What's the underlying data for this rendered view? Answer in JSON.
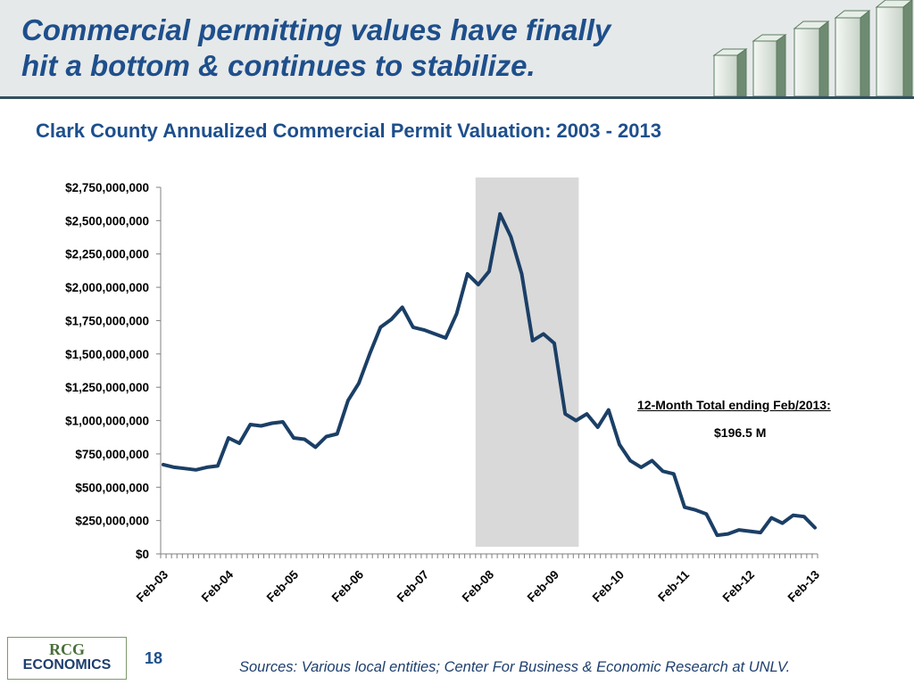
{
  "slide": {
    "title_line1": "Commercial permitting values have finally",
    "title_line2": "hit a bottom & continues to stabilize.",
    "page_number": "18",
    "source": "Sources: Various local entities; Center For Business & Economic Research at UNLV.",
    "logo_top": "RCG",
    "logo_bottom": "ECONOMICS"
  },
  "colors": {
    "title": "#1e4f8c",
    "line": "#1b3f66",
    "recession_band": "#d9d9d9",
    "header_bg": "#e6e9e9",
    "header_rule": "#33505f"
  },
  "chart_data": {
    "type": "line",
    "title": "Clark County Annualized Commercial Permit Valuation: 2003 - 2013",
    "xlabel": "",
    "ylabel": "",
    "ylim": [
      0,
      2750000000
    ],
    "grid": false,
    "y_ticks": [
      "$0",
      "$250,000,000",
      "$500,000,000",
      "$750,000,000",
      "$1,000,000,000",
      "$1,250,000,000",
      "$1,500,000,000",
      "$1,750,000,000",
      "$2,000,000,000",
      "$2,250,000,000",
      "$2,500,000,000",
      "$2,750,000,000"
    ],
    "x_ticks": [
      "Feb-03",
      "Feb-04",
      "Feb-05",
      "Feb-06",
      "Feb-07",
      "Feb-08",
      "Feb-09",
      "Feb-10",
      "Feb-11",
      "Feb-12",
      "Feb-13"
    ],
    "shaded_period": [
      "Dec-07",
      "Jun-09"
    ],
    "annotation": {
      "label": "12-Month Total ending Feb/2013:",
      "value": "$196.5 M"
    },
    "series": [
      {
        "x": [
          "Feb-03",
          "Apr-03",
          "Jun-03",
          "Aug-03",
          "Oct-03",
          "Dec-03",
          "Feb-04",
          "Apr-04",
          "Jun-04",
          "Aug-04",
          "Oct-04",
          "Dec-04",
          "Feb-05",
          "Apr-05",
          "Jun-05",
          "Aug-05",
          "Oct-05",
          "Dec-05",
          "Feb-06",
          "Apr-06",
          "Jun-06",
          "Aug-06",
          "Oct-06",
          "Dec-06",
          "Feb-07",
          "Apr-07",
          "Jun-07",
          "Aug-07",
          "Oct-07",
          "Dec-07",
          "Feb-08",
          "Apr-08",
          "Jun-08",
          "Aug-08",
          "Oct-08",
          "Dec-08",
          "Feb-09",
          "Apr-09",
          "Jun-09",
          "Aug-09",
          "Oct-09",
          "Dec-09",
          "Feb-10",
          "Apr-10",
          "Jun-10",
          "Aug-10",
          "Oct-10",
          "Dec-10",
          "Feb-11",
          "Apr-11",
          "Jun-11",
          "Aug-11",
          "Oct-11",
          "Dec-11",
          "Feb-12",
          "Apr-12",
          "Jun-12",
          "Aug-12",
          "Oct-12",
          "Dec-12",
          "Feb-13"
        ],
        "values": [
          670000000,
          650000000,
          640000000,
          630000000,
          650000000,
          660000000,
          870000000,
          830000000,
          970000000,
          960000000,
          980000000,
          990000000,
          870000000,
          860000000,
          800000000,
          880000000,
          900000000,
          1150000000,
          1280000000,
          1500000000,
          1700000000,
          1760000000,
          1850000000,
          1700000000,
          1680000000,
          1650000000,
          1620000000,
          1800000000,
          2100000000,
          2020000000,
          2120000000,
          2550000000,
          2380000000,
          2100000000,
          1600000000,
          1650000000,
          1580000000,
          1050000000,
          1000000000,
          1050000000,
          950000000,
          1080000000,
          820000000,
          700000000,
          650000000,
          700000000,
          620000000,
          600000000,
          350000000,
          330000000,
          300000000,
          140000000,
          150000000,
          180000000,
          170000000,
          160000000,
          270000000,
          230000000,
          290000000,
          280000000,
          196500000
        ]
      }
    ]
  }
}
